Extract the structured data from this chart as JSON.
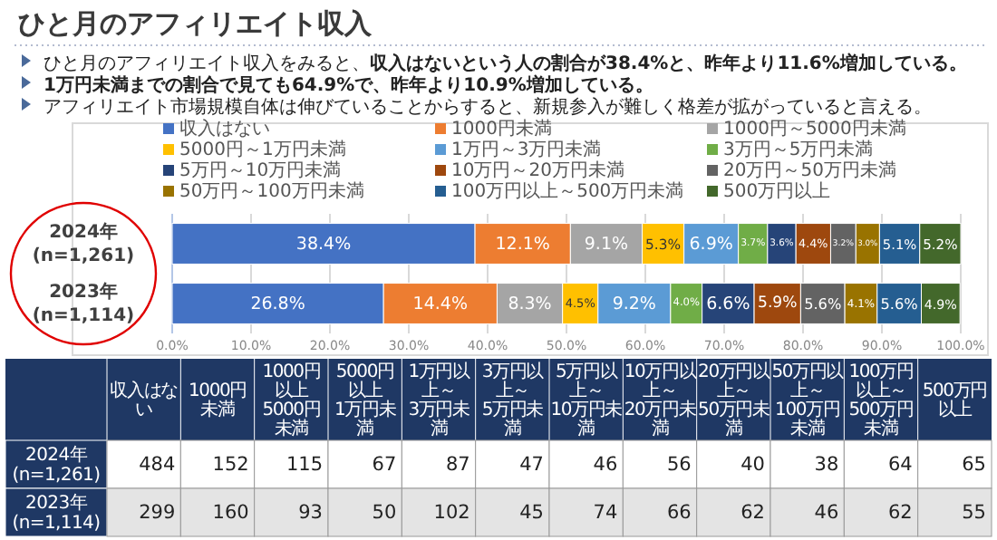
{
  "chart_data": [
    {
      "type": "bar",
      "title": "ひと月のアフィリエイト収入",
      "annotations": [
        "ひと月のアフィリエイト収入をみると、**収入はないという人の割合が38.4%と、昨年より11.6%増加している。**",
        "**1万円未満までの割合で見ても64.9%で、昨年より10.9%増加している。**",
        "アフィリエイト市場規模自体は伸びていることからすると、新規参入が難しく格差が拡がっていると言える。"
      ],
      "categories": [
        "2024年 (n=1,261)",
        "2023年 (n=1,114)"
      ],
      "orientation": "horizontal",
      "stacked": true,
      "xlim": [
        0,
        100
      ],
      "xticks": [
        {
          "value": 0,
          "label": "0.0%"
        },
        {
          "value": 10,
          "label": "10.0%"
        },
        {
          "value": 20,
          "label": "20.0%"
        },
        {
          "value": 30,
          "label": "30.0%"
        },
        {
          "value": 40,
          "label": "40.0%"
        },
        {
          "value": 50,
          "label": "50.0%"
        },
        {
          "value": 60,
          "label": "60.0%"
        },
        {
          "value": 70,
          "label": "70.0%"
        },
        {
          "value": 80,
          "label": "80.0%"
        },
        {
          "value": 90,
          "label": "90.0%"
        },
        {
          "value": 100,
          "label": "100.0%"
        }
      ],
      "grid": "x",
      "legend": "top",
      "series": [
        {
          "name": "収入はない",
          "color": "#4472c4",
          "values": [
            38.4,
            26.8
          ],
          "value_labels": [
            "38.4%",
            "26.8%"
          ]
        },
        {
          "name": "1000円未満",
          "color": "#ed7d31",
          "values": [
            12.1,
            14.4
          ],
          "value_labels": [
            "12.1%",
            "14.4%"
          ]
        },
        {
          "name": "1000円～5000円未満",
          "color": "#a5a5a5",
          "values": [
            9.1,
            8.3
          ],
          "value_labels": [
            "9.1%",
            "8.3%"
          ]
        },
        {
          "name": "5000円～1万円未満",
          "color": "#ffc000",
          "values": [
            5.3,
            4.5
          ],
          "value_labels": [
            "5.3%",
            "4.5%"
          ]
        },
        {
          "name": "1万円～3万円未満",
          "color": "#5b9bd5",
          "values": [
            6.9,
            9.2
          ],
          "value_labels": [
            "6.9%",
            "9.2%"
          ]
        },
        {
          "name": "3万円～5万円未満",
          "color": "#70ad47",
          "values": [
            3.7,
            4.0
          ],
          "value_labels": [
            "3.7%",
            "4.0%"
          ]
        },
        {
          "name": "5万円～10万円未満",
          "color": "#264478",
          "values": [
            3.6,
            6.6
          ],
          "value_labels": [
            "3.6%",
            "6.6%"
          ]
        },
        {
          "name": "10万円～20万円未満",
          "color": "#9e480e",
          "values": [
            4.4,
            5.9
          ],
          "value_labels": [
            "4.4%",
            "5.9%"
          ]
        },
        {
          "name": "20万円～50万円未満",
          "color": "#636363",
          "values": [
            3.2,
            5.6
          ],
          "value_labels": [
            "3.2%",
            "5.6%"
          ]
        },
        {
          "name": "50万円～100万円未満",
          "color": "#997300",
          "values": [
            3.0,
            4.1
          ],
          "value_labels": [
            "3.0%",
            "4.1%"
          ]
        },
        {
          "name": "100万円以上～500万円未満",
          "color": "#255e91",
          "values": [
            5.1,
            5.6
          ],
          "value_labels": [
            "5.1%",
            "5.6%"
          ]
        },
        {
          "name": "500万円以上",
          "color": "#43682b",
          "values": [
            5.2,
            4.9
          ],
          "value_labels": [
            "5.2%",
            "4.9%"
          ]
        }
      ]
    },
    {
      "type": "heatmap",
      "data_labels": true,
      "categories": [
        "収入はない",
        "1000円未満",
        "1000円以上 5000円未満",
        "5000円以上 1万円未満",
        "1万円以上～ 3万円未満",
        "3万円以上～ 5万円未満",
        "5万円以上～ 10万円未満",
        "10万円以上～ 20万円未満",
        "20万円以上～ 50万円未満",
        "50万円以上～ 100万円未満",
        "100万円以上～ 500万円未満",
        "500万円以上"
      ],
      "y_categories": [
        "2024年 (n=1,261)",
        "2023年 (n=1,114)"
      ],
      "cells": [
        [
          484,
          152,
          115,
          67,
          87,
          47,
          46,
          56,
          40,
          38,
          64,
          65
        ],
        [
          299,
          160,
          93,
          50,
          102,
          45,
          74,
          66,
          62,
          46,
          62,
          55
        ]
      ]
    }
  ]
}
